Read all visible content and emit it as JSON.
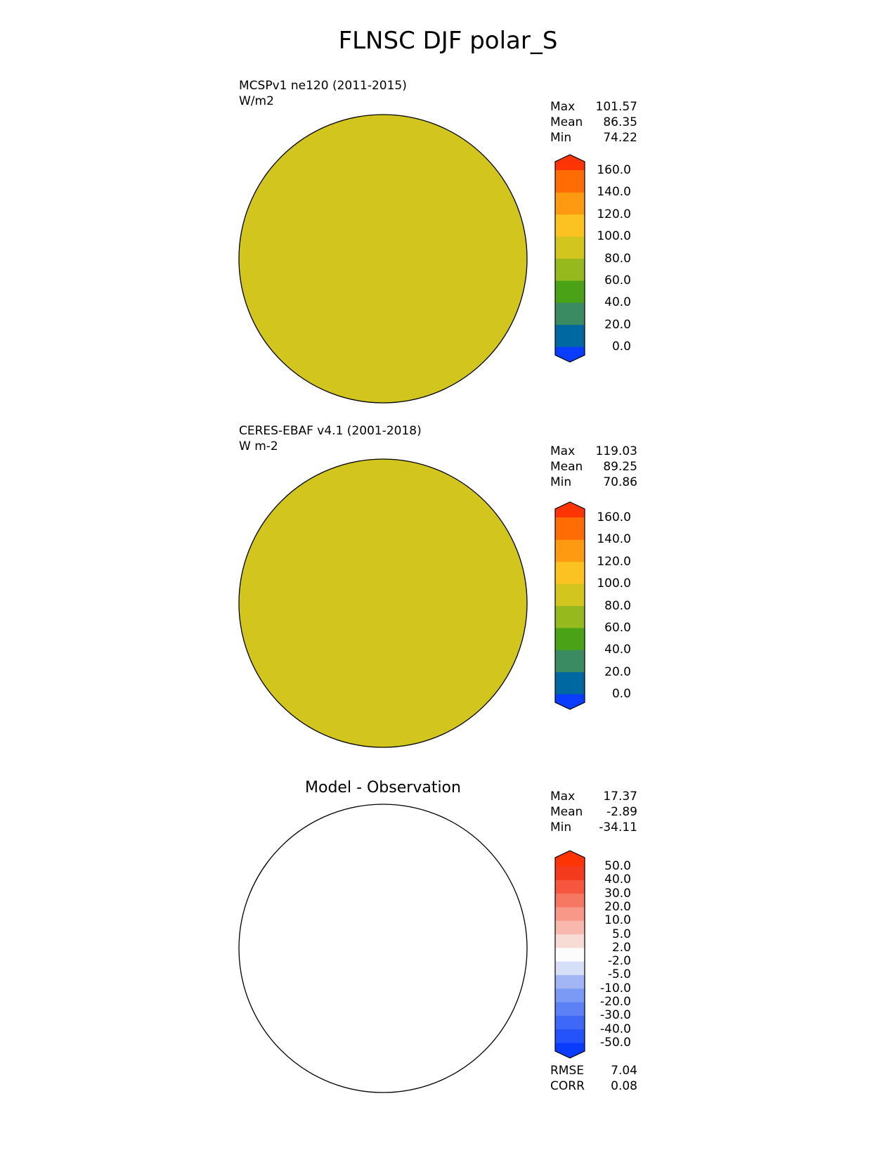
{
  "title": "FLNSC DJF polar_S",
  "colors": {
    "base_main": "#d2c61e",
    "base_diff": "#ffffff",
    "grid": "#b4b4b4",
    "coast": "#000000"
  },
  "panels": [
    {
      "id": "model",
      "title_line1": "MCSPv1 ne120 (2011-2015)",
      "title_line2": "W/m2",
      "center_title": "",
      "stats": [
        {
          "label": "Max",
          "value": "101.57"
        },
        {
          "label": "Mean",
          "value": "86.35"
        },
        {
          "label": "Min",
          "value": "74.22"
        }
      ],
      "colorbar": {
        "labels": [
          "160.0",
          "140.0",
          "120.0",
          "100.0",
          "80.0",
          "60.0",
          "40.0",
          "20.0",
          "0.0"
        ],
        "colors": [
          "#0a3cff",
          "#0068a0",
          "#3a8a62",
          "#4aa317",
          "#96ba1e",
          "#d2c61e",
          "#fbc221",
          "#fd9a12",
          "#fe6c03",
          "#ff3405"
        ]
      }
    },
    {
      "id": "obs",
      "title_line1": "CERES-EBAF v4.1 (2001-2018)",
      "title_line2": "W m-2",
      "center_title": "",
      "stats": [
        {
          "label": "Max",
          "value": "119.03"
        },
        {
          "label": "Mean",
          "value": "89.25"
        },
        {
          "label": "Min",
          "value": "70.86"
        }
      ],
      "colorbar": {
        "labels": [
          "160.0",
          "140.0",
          "120.0",
          "100.0",
          "80.0",
          "60.0",
          "40.0",
          "20.0",
          "0.0"
        ],
        "colors": [
          "#0a3cff",
          "#0068a0",
          "#3a8a62",
          "#4aa317",
          "#96ba1e",
          "#d2c61e",
          "#fbc221",
          "#fd9a12",
          "#fe6c03",
          "#ff3405"
        ]
      }
    },
    {
      "id": "diff",
      "title_line1": "",
      "title_line2": "",
      "center_title": "Model - Observation",
      "stats": [
        {
          "label": "Max",
          "value": "17.37"
        },
        {
          "label": "Mean",
          "value": "-2.89"
        },
        {
          "label": "Min",
          "value": "-34.11"
        }
      ],
      "extra_stats": [
        {
          "label": "RMSE",
          "value": "7.04"
        },
        {
          "label": "CORR",
          "value": "0.08"
        }
      ],
      "colorbar": {
        "labels": [
          "50.0",
          "40.0",
          "30.0",
          "20.0",
          "10.0",
          "5.0",
          "2.0",
          "-2.0",
          "-5.0",
          "-10.0",
          "-20.0",
          "-30.0",
          "-40.0",
          "-50.0"
        ],
        "colors": [
          "#0a3cff",
          "#2453fb",
          "#3e69f8",
          "#5b81f5",
          "#7b9af5",
          "#a2b6f5",
          "#d6dff8",
          "#fcfcfc",
          "#f9dbd5",
          "#f9b8ae",
          "#f89888",
          "#f77862",
          "#f6563e",
          "#f33a1d",
          "#ff3405"
        ]
      }
    }
  ],
  "chart_data": [
    {
      "type": "heatmap",
      "projection": "south polar stereographic",
      "title": "MCSPv1 ne120 (2011-2015)",
      "units": "W/m2",
      "stats": {
        "max": 101.57,
        "mean": 86.35,
        "min": 74.22
      },
      "levels": [
        0,
        20,
        40,
        60,
        80,
        100,
        120,
        140,
        160
      ]
    },
    {
      "type": "heatmap",
      "projection": "south polar stereographic",
      "title": "CERES-EBAF v4.1 (2001-2018)",
      "units": "W m-2",
      "stats": {
        "max": 119.03,
        "mean": 89.25,
        "min": 70.86
      },
      "levels": [
        0,
        20,
        40,
        60,
        80,
        100,
        120,
        140,
        160
      ]
    },
    {
      "type": "heatmap",
      "projection": "south polar stereographic",
      "title": "Model - Observation",
      "stats": {
        "max": 17.37,
        "mean": -2.89,
        "min": -34.11,
        "rmse": 7.04,
        "corr": 0.08
      },
      "levels": [
        -50,
        -40,
        -30,
        -20,
        -10,
        -5,
        -2,
        2,
        5,
        10,
        20,
        30,
        40,
        50
      ]
    }
  ]
}
